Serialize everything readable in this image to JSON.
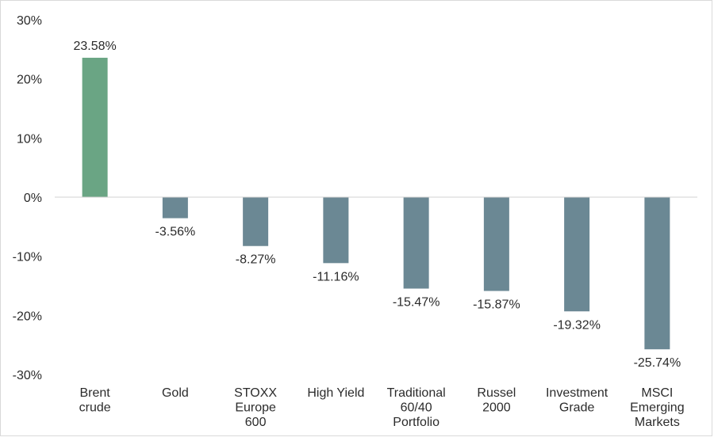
{
  "chart_data": {
    "type": "bar",
    "categories": [
      [
        "Brent",
        "crude"
      ],
      [
        "Gold"
      ],
      [
        "STOXX",
        "Europe",
        "600"
      ],
      [
        "High Yield"
      ],
      [
        "Traditional",
        "60/40",
        "Portfolio"
      ],
      [
        "Russel",
        "2000"
      ],
      [
        "Investment",
        "Grade"
      ],
      [
        "MSCI",
        "Emerging",
        "Markets"
      ]
    ],
    "values": [
      23.58,
      -3.56,
      -8.27,
      -11.16,
      -15.47,
      -15.87,
      -19.32,
      -25.74
    ],
    "data_labels": [
      "23.58%",
      "-3.56%",
      "-8.27%",
      "-11.16%",
      "-15.47%",
      "-15.87%",
      "-19.32%",
      "-25.74%"
    ],
    "bar_colors": [
      "#6aa584",
      "#6b8894",
      "#6b8894",
      "#6b8894",
      "#6b8894",
      "#6b8894",
      "#6b8894",
      "#6b8894"
    ],
    "ylim": [
      -30,
      30
    ],
    "yticks": [
      30,
      20,
      10,
      0,
      -10,
      -20,
      -30
    ],
    "ytick_labels": [
      "30%",
      "20%",
      "10%",
      "0%",
      "-10%",
      "-20%",
      "-30%"
    ],
    "grid": false,
    "title": "",
    "xlabel": "",
    "ylabel": ""
  },
  "colors": {
    "positive": "#6aa584",
    "negative": "#6b8894",
    "axis": "#d0d0d0",
    "text": "#2b2b2b"
  }
}
